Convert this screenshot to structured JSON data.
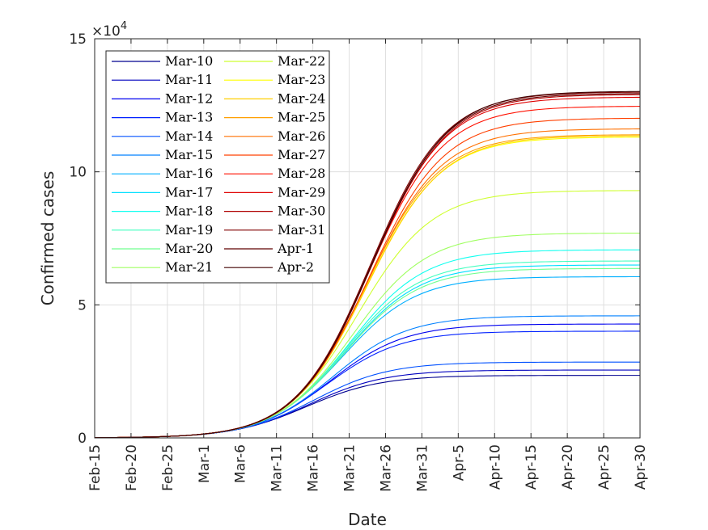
{
  "chart_data": {
    "type": "line",
    "title": "",
    "xlabel": "Date",
    "ylabel": "Confirmed cases",
    "y_exponent": "×10^4",
    "y_exponent_base": "×10",
    "y_exponent_power": "4",
    "x_tick_labels": [
      "Feb-15",
      "Feb-20",
      "Feb-25",
      "Mar-1",
      "Mar-6",
      "Mar-11",
      "Mar-16",
      "Mar-21",
      "Mar-26",
      "Mar-31",
      "Apr-5",
      "Apr-10",
      "Apr-15",
      "Apr-20",
      "Apr-25",
      "Apr-30"
    ],
    "y_tick_labels": [
      "0",
      "5",
      "10",
      "15"
    ],
    "xlim": [
      "Feb-15",
      "Apr-30"
    ],
    "ylim": [
      0,
      150000
    ],
    "grid": true,
    "legend_position": "top-left",
    "series": [
      {
        "name": "Mar-10",
        "final": 23500,
        "color": "#00008f"
      },
      {
        "name": "Mar-11",
        "final": 25500,
        "color": "#0000bf"
      },
      {
        "name": "Mar-12",
        "final": 42800,
        "color": "#0000ef"
      },
      {
        "name": "Mar-13",
        "final": 40100,
        "color": "#0020ff"
      },
      {
        "name": "Mar-14",
        "final": 28500,
        "color": "#0050ff"
      },
      {
        "name": "Mar-15",
        "final": 45900,
        "color": "#0080ff"
      },
      {
        "name": "Mar-16",
        "final": 60600,
        "color": "#00afff"
      },
      {
        "name": "Mar-17",
        "final": 65000,
        "color": "#00dfff"
      },
      {
        "name": "Mar-18",
        "final": 70700,
        "color": "#10ffef"
      },
      {
        "name": "Mar-19",
        "final": 66500,
        "color": "#40ffbf"
      },
      {
        "name": "Mar-20",
        "final": 63700,
        "color": "#70ff8f"
      },
      {
        "name": "Mar-21",
        "final": 77000,
        "color": "#9fff60"
      },
      {
        "name": "Mar-22",
        "final": 93000,
        "color": "#cfff30"
      },
      {
        "name": "Mar-23",
        "final": 113100,
        "color": "#ffff00"
      },
      {
        "name": "Mar-24",
        "final": 113600,
        "color": "#ffcf00"
      },
      {
        "name": "Mar-25",
        "final": 114000,
        "color": "#ff9f00"
      },
      {
        "name": "Mar-26",
        "final": 116200,
        "color": "#ff7000"
      },
      {
        "name": "Mar-27",
        "final": 120200,
        "color": "#ff4000"
      },
      {
        "name": "Mar-28",
        "final": 124700,
        "color": "#ff1000"
      },
      {
        "name": "Mar-29",
        "final": 128100,
        "color": "#df0000"
      },
      {
        "name": "Mar-30",
        "final": 129100,
        "color": "#af0000"
      },
      {
        "name": "Mar-31",
        "final": 130000,
        "color": "#800000"
      },
      {
        "name": "Apr-1",
        "final": 129500,
        "color": "#600000"
      },
      {
        "name": "Apr-2",
        "final": 130300,
        "color": "#400000"
      }
    ]
  }
}
